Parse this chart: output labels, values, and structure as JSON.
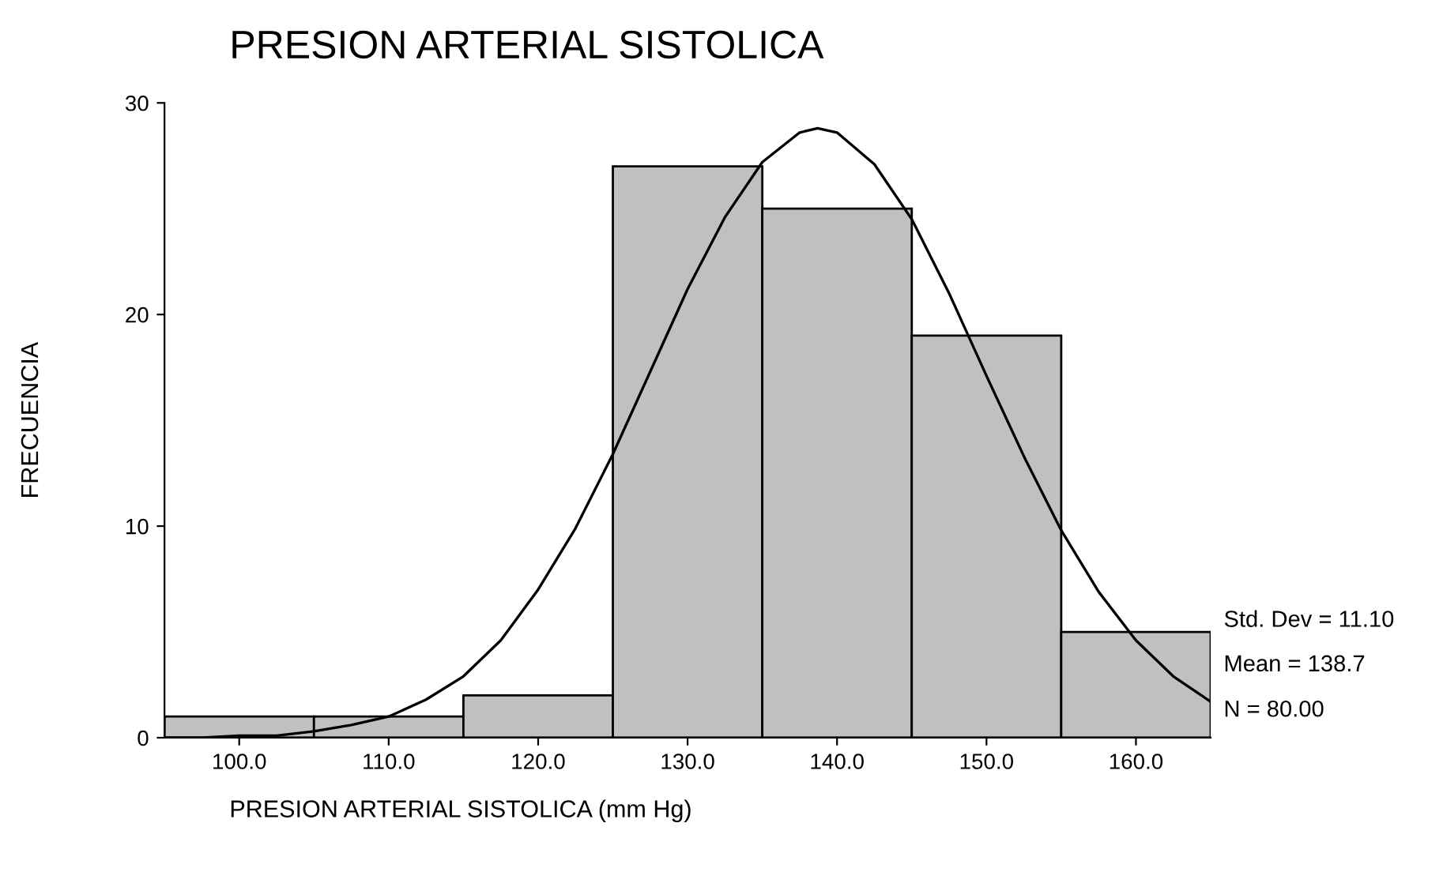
{
  "chart_data": {
    "type": "histogram",
    "title": "PRESION ARTERIAL SISTOLICA",
    "xlabel": "PRESION ARTERIAL SISTOLICA (mm Hg)",
    "ylabel": "FRECUENCIA",
    "bins": [
      95,
      105,
      115,
      125,
      135,
      145,
      155,
      165
    ],
    "values": [
      1,
      1,
      2,
      27,
      25,
      19,
      5
    ],
    "color": "#c0c0c0",
    "series": [
      {
        "type": "line",
        "color": "#000000",
        "x": [
          95,
          97.5,
          100,
          102.5,
          105,
          107.5,
          110,
          112.5,
          115,
          117.5,
          120,
          122.5,
          125,
          127.5,
          130,
          132.5,
          135,
          137.5,
          138.7,
          140,
          142.5,
          145,
          147.5,
          150,
          152.5,
          155,
          157.5,
          160,
          162.5,
          165
        ],
        "values": [
          0.0,
          0.0,
          0.1,
          0.1,
          0.3,
          0.6,
          1.0,
          1.8,
          2.9,
          4.6,
          7.0,
          9.9,
          13.4,
          17.3,
          21.2,
          24.6,
          27.2,
          28.6,
          28.8,
          28.6,
          27.1,
          24.5,
          21.0,
          17.1,
          13.3,
          9.8,
          6.9,
          4.6,
          2.9,
          1.7
        ]
      }
    ],
    "xlim": [
      95,
      165
    ],
    "xticks": [
      {
        "value": 100,
        "label": "100.0"
      },
      {
        "value": 110,
        "label": "110.0"
      },
      {
        "value": 120,
        "label": "120.0"
      },
      {
        "value": 130,
        "label": "130.0"
      },
      {
        "value": 140,
        "label": "140.0"
      },
      {
        "value": 150,
        "label": "150.0"
      },
      {
        "value": 160,
        "label": "160.0"
      }
    ],
    "ylim": [
      0,
      30
    ],
    "yticks": [
      0,
      10,
      20,
      30
    ],
    "grid": false,
    "legend": false,
    "marker": "none",
    "line_style": "solid",
    "annotations": [
      "Std. Dev = 11.10",
      "Mean = 138.7",
      "N = 80.00"
    ]
  }
}
